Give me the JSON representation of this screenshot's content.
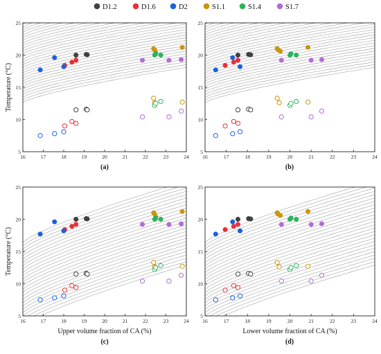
{
  "legend": [
    {
      "label": "D1.2",
      "color": "#404040"
    },
    {
      "label": "D1.6",
      "color": "#e8303a"
    },
    {
      "label": "D2",
      "color": "#1a62d6"
    },
    {
      "label": "S1.1",
      "color": "#c9960c"
    },
    {
      "label": "S1.4",
      "color": "#2db35f"
    },
    {
      "label": "S1.7",
      "color": "#b36bdc"
    }
  ],
  "chart_data": [
    {
      "type": "scatter",
      "panel": "(a)",
      "xlabel": "",
      "ylabel": "Temperature (°C)",
      "xlim": [
        16,
        24
      ],
      "ylim": [
        5,
        25
      ],
      "xticks": [
        16,
        17,
        18,
        19,
        20,
        21,
        22,
        23,
        24
      ],
      "yticks": [
        5,
        10,
        15,
        20,
        25
      ],
      "xtick_labels": [
        "16",
        "17",
        "18",
        "19",
        "20",
        "21",
        "22",
        "23",
        "24"
      ],
      "ytick_labels": [
        "5",
        "10",
        "15",
        "20",
        "25"
      ],
      "series": [
        {
          "name": "D1.2",
          "color": "#404040",
          "filled": [
            [
              18.6,
              20
            ],
            [
              19.1,
              20.1
            ],
            [
              19.15,
              20.05
            ]
          ],
          "open": [
            [
              18.6,
              11.5
            ],
            [
              19.1,
              11.6
            ],
            [
              19.15,
              11.5
            ]
          ]
        },
        {
          "name": "D1.6",
          "color": "#e8303a",
          "filled": [
            [
              18.05,
              18.4
            ],
            [
              18.4,
              18.9
            ],
            [
              18.6,
              19.2
            ]
          ],
          "open": [
            [
              18.05,
              9.0
            ],
            [
              18.4,
              9.7
            ],
            [
              18.6,
              9.4
            ]
          ]
        },
        {
          "name": "D2",
          "color": "#1a62d6",
          "filled": [
            [
              16.85,
              17.7
            ],
            [
              17.55,
              19.6
            ],
            [
              18.0,
              18.2
            ]
          ],
          "open": [
            [
              16.85,
              7.5
            ],
            [
              17.55,
              7.8
            ],
            [
              18.0,
              8.1
            ]
          ]
        },
        {
          "name": "S1.1",
          "color": "#c9960c",
          "filled": [
            [
              22.4,
              21.0
            ],
            [
              22.45,
              20.8
            ],
            [
              22.5,
              20.4
            ],
            [
              23.8,
              21.2
            ]
          ],
          "open": [
            [
              22.4,
              13.3
            ],
            [
              22.45,
              12.6
            ],
            [
              23.8,
              12.7
            ]
          ]
        },
        {
          "name": "S1.4",
          "color": "#2db35f",
          "filled": [
            [
              22.45,
              20.0
            ],
            [
              22.5,
              20.2
            ],
            [
              22.75,
              20.0
            ]
          ],
          "open": [
            [
              22.45,
              12.2
            ],
            [
              22.5,
              12.5
            ],
            [
              22.75,
              12.8
            ]
          ]
        },
        {
          "name": "S1.7",
          "color": "#b36bdc",
          "filled": [
            [
              21.85,
              19.2
            ],
            [
              23.15,
              19.2
            ],
            [
              23.75,
              19.3
            ]
          ],
          "open": [
            [
              21.85,
              10.4
            ],
            [
              23.15,
              10.4
            ],
            [
              23.75,
              11.3
            ]
          ]
        }
      ]
    },
    {
      "type": "scatter",
      "panel": "(b)",
      "xlabel": "",
      "ylabel": "",
      "xlim": [
        16,
        24
      ],
      "ylim": [
        5,
        25
      ],
      "xticks": [
        16,
        17,
        18,
        19,
        20,
        21,
        22,
        23,
        24
      ],
      "yticks": [
        5,
        10,
        15,
        20,
        25
      ],
      "xtick_labels": [
        "16",
        "17",
        "18",
        "19",
        "20",
        "21",
        "22",
        "23",
        "24"
      ],
      "ytick_labels": [
        "5",
        "10",
        "15",
        "20",
        "25"
      ],
      "series": [
        {
          "name": "D1.2",
          "color": "#404040",
          "filled": [
            [
              17.55,
              20.0
            ],
            [
              18.05,
              20.1
            ],
            [
              18.15,
              20.05
            ]
          ],
          "open": [
            [
              17.55,
              11.5
            ],
            [
              18.05,
              11.6
            ],
            [
              18.15,
              11.5
            ]
          ]
        },
        {
          "name": "D1.6",
          "color": "#e8303a",
          "filled": [
            [
              16.95,
              18.4
            ],
            [
              17.35,
              18.9
            ],
            [
              17.55,
              19.2
            ]
          ],
          "open": [
            [
              16.95,
              9.0
            ],
            [
              17.35,
              9.7
            ],
            [
              17.55,
              9.4
            ]
          ]
        },
        {
          "name": "D2",
          "color": "#1a62d6",
          "filled": [
            [
              16.5,
              17.7
            ],
            [
              17.3,
              19.6
            ],
            [
              17.65,
              18.2
            ]
          ],
          "open": [
            [
              16.5,
              7.5
            ],
            [
              17.3,
              7.8
            ],
            [
              17.65,
              8.1
            ]
          ]
        },
        {
          "name": "S1.1",
          "color": "#c9960c",
          "filled": [
            [
              19.4,
              21.0
            ],
            [
              19.45,
              20.8
            ],
            [
              19.55,
              20.6
            ],
            [
              20.85,
              21.2
            ]
          ],
          "open": [
            [
              19.4,
              13.3
            ],
            [
              19.5,
              12.6
            ],
            [
              20.85,
              12.7
            ]
          ]
        },
        {
          "name": "S1.4",
          "color": "#2db35f",
          "filled": [
            [
              20.0,
              20.0
            ],
            [
              20.05,
              20.2
            ],
            [
              20.3,
              20.0
            ]
          ],
          "open": [
            [
              20.0,
              12.2
            ],
            [
              20.05,
              12.5
            ],
            [
              20.3,
              12.8
            ]
          ]
        },
        {
          "name": "S1.7",
          "color": "#b36bdc",
          "filled": [
            [
              19.6,
              19.2
            ],
            [
              21.0,
              19.2
            ],
            [
              21.5,
              19.3
            ]
          ],
          "open": [
            [
              19.6,
              10.4
            ],
            [
              21.0,
              10.4
            ],
            [
              21.5,
              11.3
            ]
          ]
        }
      ]
    },
    {
      "type": "scatter",
      "panel": "(c)",
      "xlabel": "Upper volume fraction of CA (%)",
      "ylabel": "Temperature (°C)",
      "xlim": [
        16,
        24
      ],
      "ylim": [
        5,
        25
      ],
      "xticks": [
        16,
        17,
        18,
        19,
        20,
        21,
        22,
        23,
        24
      ],
      "yticks": [
        5,
        10,
        15,
        20,
        25
      ],
      "xtick_labels": [
        "16",
        "17",
        "18",
        "19",
        "20",
        "21",
        "22",
        "23",
        "24"
      ],
      "ytick_labels": [
        "5",
        "10",
        "15",
        "20",
        "25"
      ],
      "series": [
        {
          "name": "D1.2",
          "color": "#404040",
          "filled": [
            [
              18.6,
              20
            ],
            [
              19.1,
              20.1
            ],
            [
              19.15,
              20.05
            ]
          ],
          "open": [
            [
              18.6,
              11.5
            ],
            [
              19.1,
              11.6
            ],
            [
              19.15,
              11.5
            ]
          ]
        },
        {
          "name": "D1.6",
          "color": "#e8303a",
          "filled": [
            [
              18.05,
              18.4
            ],
            [
              18.4,
              18.9
            ],
            [
              18.6,
              19.2
            ]
          ],
          "open": [
            [
              18.05,
              9.0
            ],
            [
              18.4,
              9.7
            ],
            [
              18.6,
              9.4
            ]
          ]
        },
        {
          "name": "D2",
          "color": "#1a62d6",
          "filled": [
            [
              16.85,
              17.7
            ],
            [
              17.55,
              19.6
            ],
            [
              18.0,
              18.2
            ]
          ],
          "open": [
            [
              16.85,
              7.5
            ],
            [
              17.55,
              7.8
            ],
            [
              18.0,
              8.1
            ]
          ]
        },
        {
          "name": "S1.1",
          "color": "#c9960c",
          "filled": [
            [
              22.4,
              21.0
            ],
            [
              22.45,
              20.8
            ],
            [
              22.5,
              20.4
            ],
            [
              23.8,
              21.2
            ]
          ],
          "open": [
            [
              22.4,
              13.3
            ],
            [
              22.45,
              12.6
            ],
            [
              23.8,
              12.7
            ]
          ]
        },
        {
          "name": "S1.4",
          "color": "#2db35f",
          "filled": [
            [
              22.45,
              20.0
            ],
            [
              22.5,
              20.2
            ],
            [
              22.75,
              20.0
            ]
          ],
          "open": [
            [
              22.45,
              12.2
            ],
            [
              22.5,
              12.5
            ],
            [
              22.75,
              12.8
            ]
          ]
        },
        {
          "name": "S1.7",
          "color": "#b36bdc",
          "filled": [
            [
              21.85,
              19.2
            ],
            [
              23.15,
              19.2
            ],
            [
              23.75,
              19.3
            ]
          ],
          "open": [
            [
              21.85,
              10.4
            ],
            [
              23.15,
              10.4
            ],
            [
              23.75,
              11.3
            ]
          ]
        }
      ]
    },
    {
      "type": "scatter",
      "panel": "(d)",
      "xlabel": "Lower volume fraction of CA (%)",
      "ylabel": "",
      "xlim": [
        16,
        24
      ],
      "ylim": [
        5,
        25
      ],
      "xticks": [
        16,
        17,
        18,
        19,
        20,
        21,
        22,
        23,
        24
      ],
      "yticks": [
        5,
        10,
        15,
        20,
        25
      ],
      "xtick_labels": [
        "16",
        "17",
        "18",
        "19",
        "20",
        "21",
        "22",
        "23",
        "24"
      ],
      "ytick_labels": [
        "5",
        "10",
        "15",
        "20",
        "25"
      ],
      "series": [
        {
          "name": "D1.2",
          "color": "#404040",
          "filled": [
            [
              17.55,
              20.0
            ],
            [
              18.05,
              20.1
            ],
            [
              18.15,
              20.05
            ]
          ],
          "open": [
            [
              17.55,
              11.5
            ],
            [
              18.05,
              11.6
            ],
            [
              18.15,
              11.5
            ]
          ]
        },
        {
          "name": "D1.6",
          "color": "#e8303a",
          "filled": [
            [
              16.95,
              18.4
            ],
            [
              17.35,
              18.9
            ],
            [
              17.55,
              19.2
            ]
          ],
          "open": [
            [
              16.95,
              9.0
            ],
            [
              17.35,
              9.7
            ],
            [
              17.55,
              9.4
            ]
          ]
        },
        {
          "name": "D2",
          "color": "#1a62d6",
          "filled": [
            [
              16.5,
              17.7
            ],
            [
              17.3,
              19.6
            ],
            [
              17.65,
              18.2
            ]
          ],
          "open": [
            [
              16.5,
              7.5
            ],
            [
              17.3,
              7.8
            ],
            [
              17.65,
              8.1
            ]
          ]
        },
        {
          "name": "S1.1",
          "color": "#c9960c",
          "filled": [
            [
              19.4,
              21.0
            ],
            [
              19.45,
              20.8
            ],
            [
              19.55,
              20.6
            ],
            [
              20.85,
              21.2
            ]
          ],
          "open": [
            [
              19.4,
              13.3
            ],
            [
              19.5,
              12.6
            ],
            [
              20.85,
              12.7
            ]
          ]
        },
        {
          "name": "S1.4",
          "color": "#2db35f",
          "filled": [
            [
              20.0,
              20.0
            ],
            [
              20.05,
              20.2
            ],
            [
              20.3,
              20.0
            ]
          ],
          "open": [
            [
              20.0,
              12.2
            ],
            [
              20.05,
              12.5
            ],
            [
              20.3,
              12.8
            ]
          ]
        },
        {
          "name": "S1.7",
          "color": "#b36bdc",
          "filled": [
            [
              19.6,
              19.2
            ],
            [
              21.0,
              19.2
            ],
            [
              21.5,
              19.3
            ]
          ],
          "open": [
            [
              19.6,
              10.4
            ],
            [
              21.0,
              10.4
            ],
            [
              21.5,
              11.3
            ]
          ]
        }
      ]
    }
  ]
}
